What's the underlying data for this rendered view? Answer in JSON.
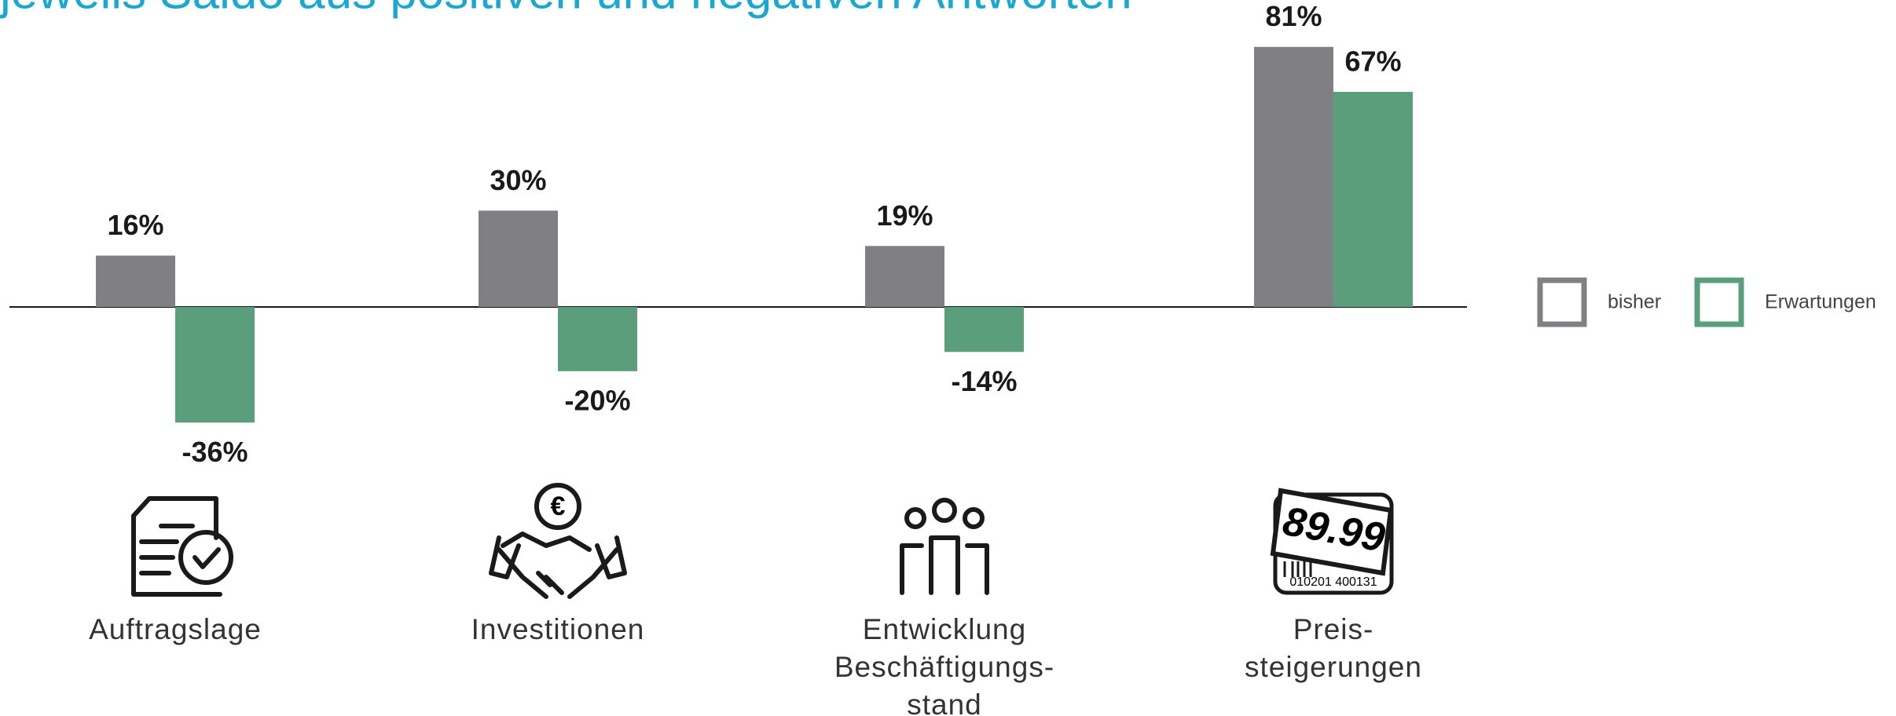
{
  "chart_data": {
    "type": "bar",
    "subtitle": "jeweils Saldo aus positiven und negativen Antworten",
    "categories": [
      [
        "Auftragslage"
      ],
      [
        "Investitionen"
      ],
      [
        "Entwicklung",
        "Beschäftigungs-",
        "stand"
      ],
      [
        "Preis-",
        "steigerungen"
      ]
    ],
    "series": [
      {
        "name": "bisher",
        "color": "#808084",
        "values": [
          16,
          30,
          19,
          81
        ],
        "value_labels": [
          "16%",
          "30%",
          "19%",
          "81%"
        ]
      },
      {
        "name": "Erwartungen",
        "color": "#5a9e7c",
        "values": [
          -36,
          -20,
          -14,
          67
        ],
        "value_labels": [
          "-36%",
          "-20%",
          "-14%",
          "67%"
        ]
      }
    ],
    "ylim": [
      -40,
      90
    ],
    "icons": {
      "euro": "€",
      "price": "89.99",
      "barcode": "010201 400131"
    }
  }
}
